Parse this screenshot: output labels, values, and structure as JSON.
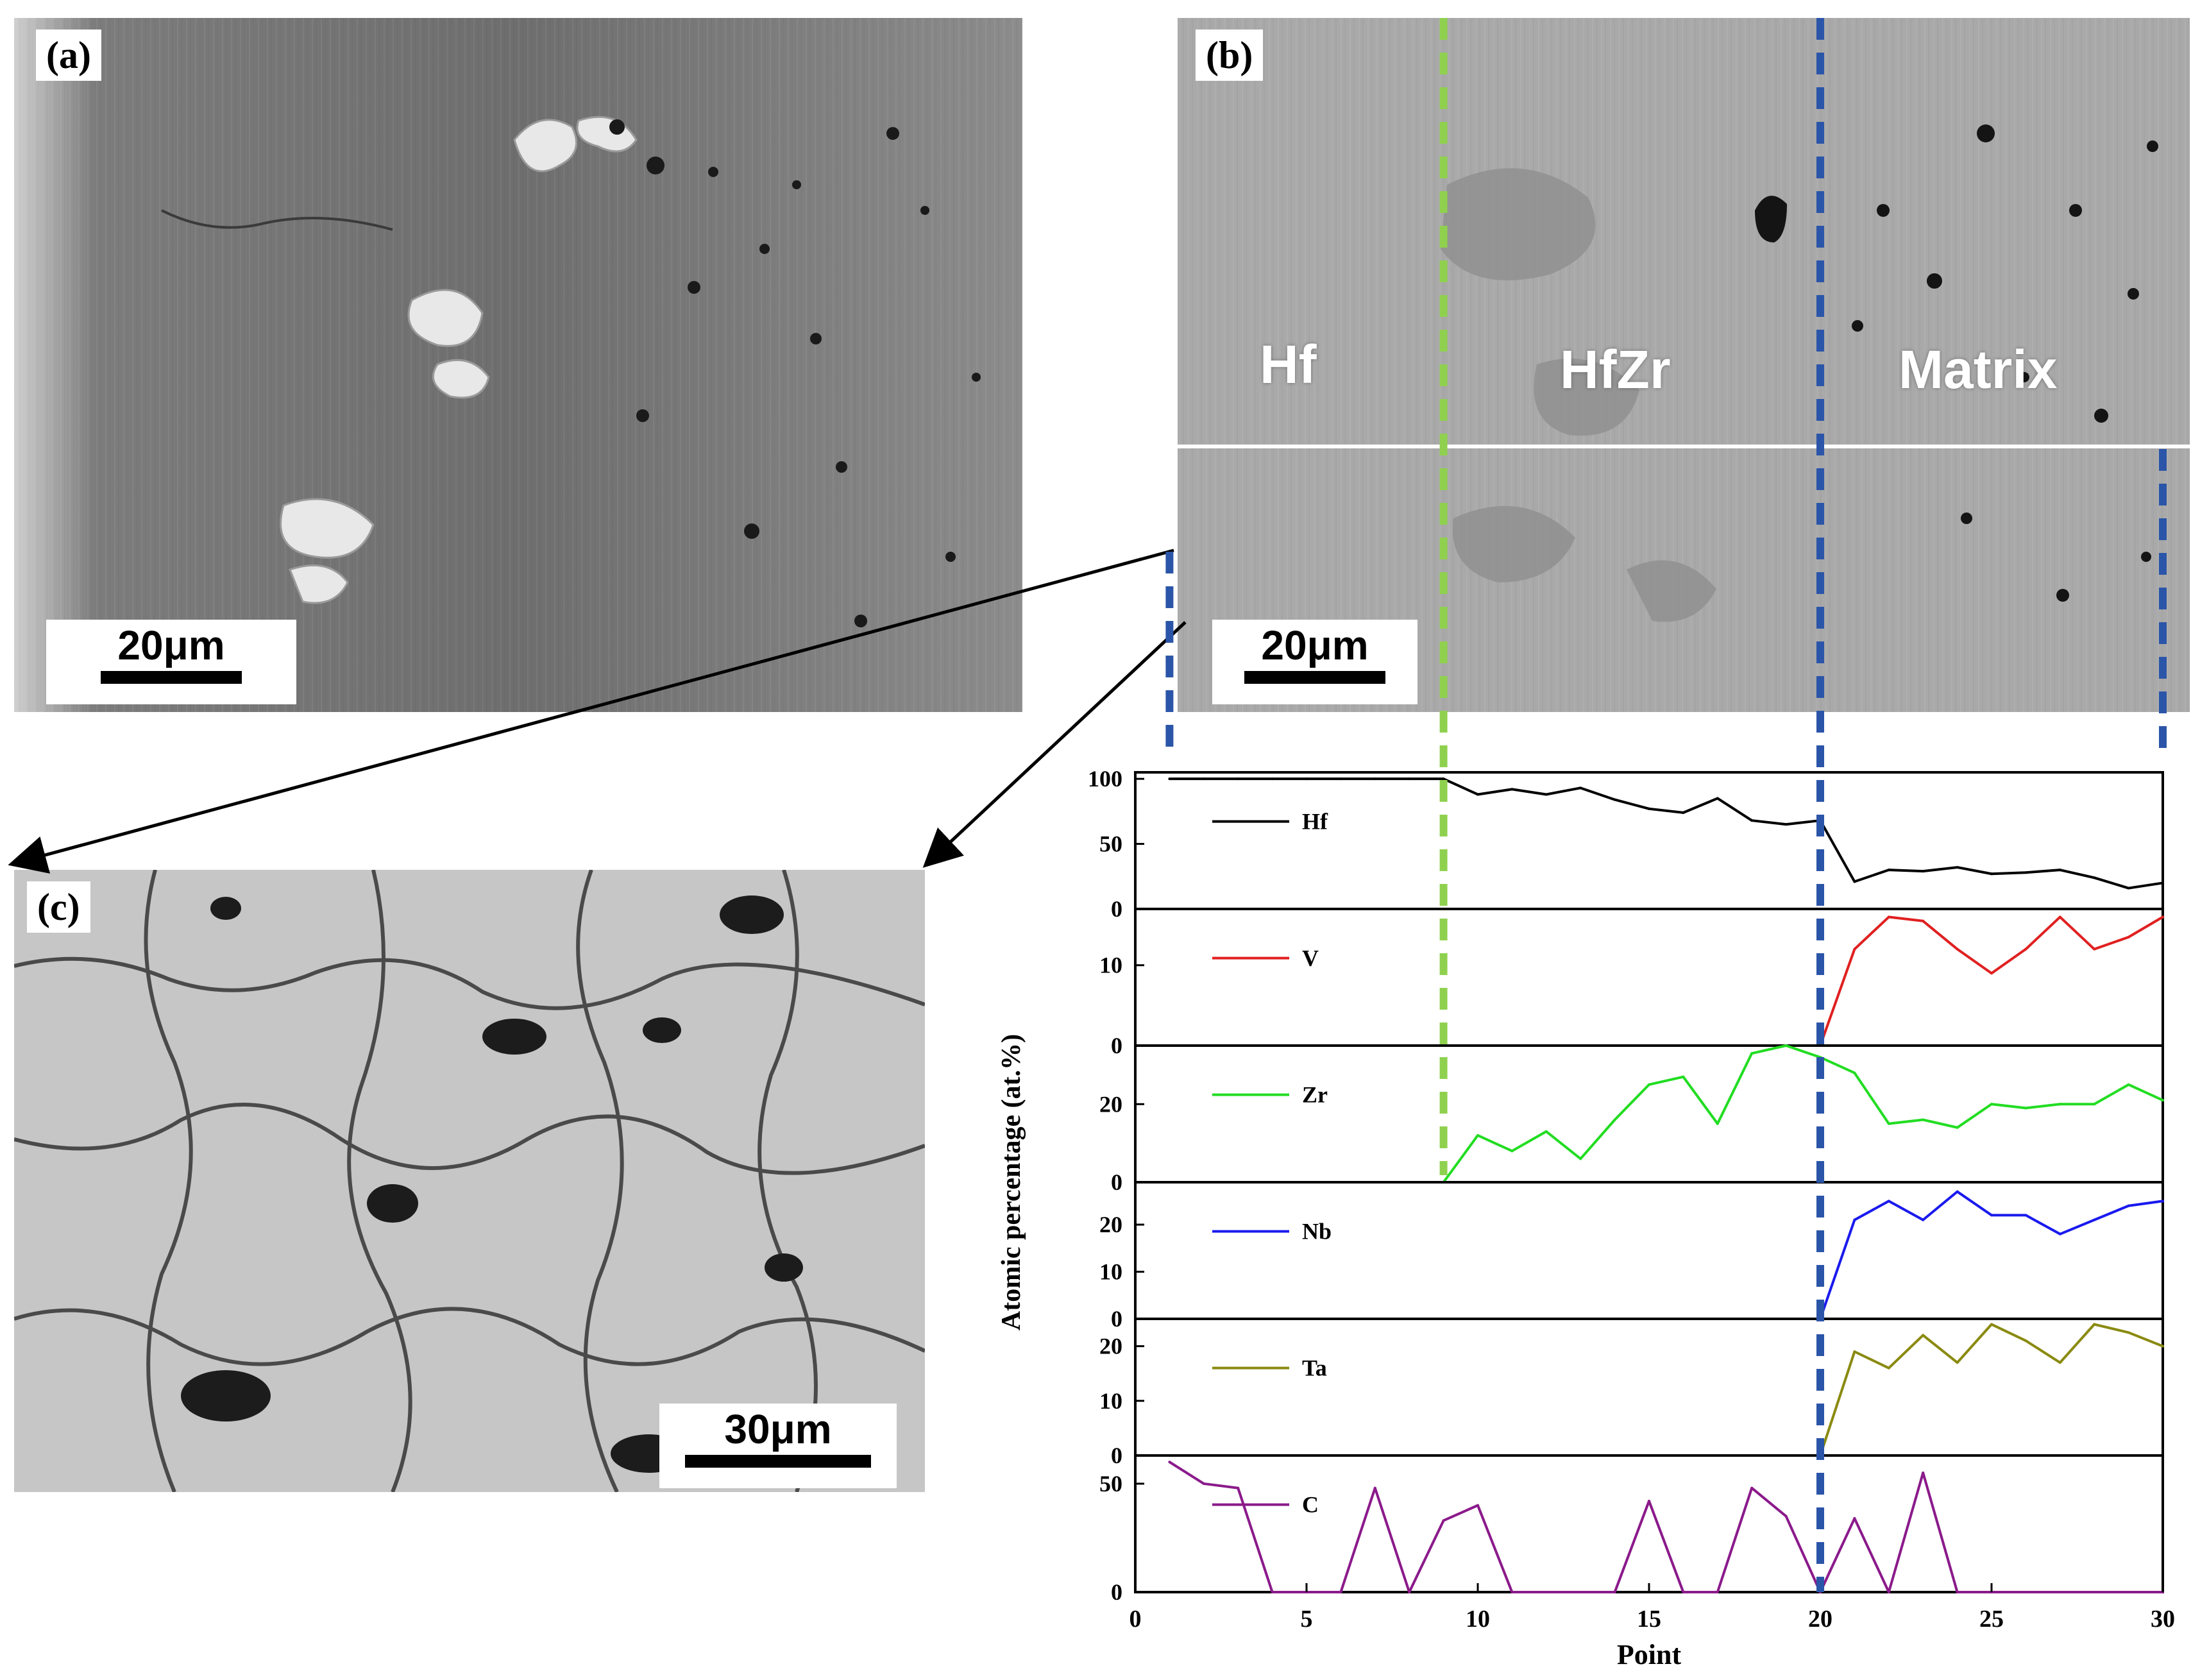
{
  "figure": {
    "panel_a": {
      "label": "(a)",
      "scale_bar": "20μm"
    },
    "panel_b": {
      "label": "(b)",
      "scale_bar": "20μm",
      "regions": {
        "hf": "Hf",
        "hfzr": "HfZr",
        "matrix": "Matrix"
      }
    },
    "panel_c": {
      "label": "(c)",
      "scale_bar": "30μm"
    }
  },
  "chart_data": {
    "type": "line",
    "xlabel": "Point",
    "ylabel": "Atomic percentage (at.%)",
    "xlim": [
      0,
      30
    ],
    "xticks": [
      0,
      5,
      10,
      15,
      20,
      25,
      30
    ],
    "x": [
      1,
      2,
      3,
      4,
      5,
      6,
      7,
      8,
      9,
      10,
      11,
      12,
      13,
      14,
      15,
      16,
      17,
      18,
      19,
      20,
      21,
      22,
      23,
      24,
      25,
      26,
      27,
      28,
      29,
      30
    ],
    "series": [
      {
        "name": "Hf",
        "color": "#000000",
        "ylim": [
          0,
          105
        ],
        "yticks": [
          0,
          50,
          100
        ],
        "values": [
          100,
          100,
          100,
          100,
          100,
          100,
          100,
          100,
          100,
          88,
          92,
          88,
          93,
          84,
          77,
          74,
          85,
          68,
          65,
          68,
          21,
          30,
          29,
          32,
          27,
          28,
          30,
          24,
          16,
          20
        ]
      },
      {
        "name": "V",
        "color": "#e02020",
        "ylim": [
          0,
          17
        ],
        "yticks": [
          0,
          10
        ],
        "values": [
          0,
          0,
          0,
          0,
          0,
          0,
          0,
          0,
          0,
          0,
          0,
          0,
          0,
          0,
          0,
          0,
          0,
          0,
          0,
          0,
          12,
          16,
          15.5,
          12,
          9,
          12,
          16,
          12,
          13.5,
          16
        ]
      },
      {
        "name": "Zr",
        "color": "#22dd22",
        "ylim": [
          0,
          35
        ],
        "yticks": [
          0,
          20
        ],
        "values": [
          0,
          0,
          0,
          0,
          0,
          0,
          0,
          0,
          0,
          12,
          8,
          13,
          6,
          16,
          25,
          27,
          15,
          33,
          35,
          32,
          28,
          15,
          16,
          14,
          20,
          19,
          20,
          20,
          25,
          21
        ]
      },
      {
        "name": "Nb",
        "color": "#1a1aee",
        "ylim": [
          0,
          29
        ],
        "yticks": [
          0,
          10,
          20
        ],
        "values": [
          0,
          0,
          0,
          0,
          0,
          0,
          0,
          0,
          0,
          0,
          0,
          0,
          0,
          0,
          0,
          0,
          0,
          0,
          0,
          0,
          21,
          25,
          21,
          27,
          22,
          22,
          18,
          21,
          24,
          25
        ]
      },
      {
        "name": "Ta",
        "color": "#8a8a10",
        "ylim": [
          0,
          25
        ],
        "yticks": [
          0,
          10,
          20
        ],
        "values": [
          0,
          0,
          0,
          0,
          0,
          0,
          0,
          0,
          0,
          0,
          0,
          0,
          0,
          0,
          0,
          0,
          0,
          0,
          0,
          0,
          19,
          16,
          22,
          17,
          24,
          21,
          17,
          24,
          22.5,
          20
        ]
      },
      {
        "name": "C",
        "color": "#8b1a8b",
        "ylim": [
          0,
          63
        ],
        "yticks": [
          0,
          50
        ],
        "values": [
          60,
          50,
          48,
          0,
          0,
          0,
          48,
          0,
          33,
          40,
          0,
          0,
          0,
          0,
          42,
          0,
          0,
          48,
          35,
          0,
          34,
          0,
          55,
          0,
          0,
          0,
          0,
          0,
          0,
          0
        ]
      }
    ],
    "boundaries": [
      {
        "x": 1,
        "color": "#2b55a8"
      },
      {
        "x": 9,
        "color": "#8fd14f"
      },
      {
        "x": 20,
        "color": "#2b55a8"
      },
      {
        "x": 30,
        "color": "#2b55a8"
      }
    ]
  }
}
